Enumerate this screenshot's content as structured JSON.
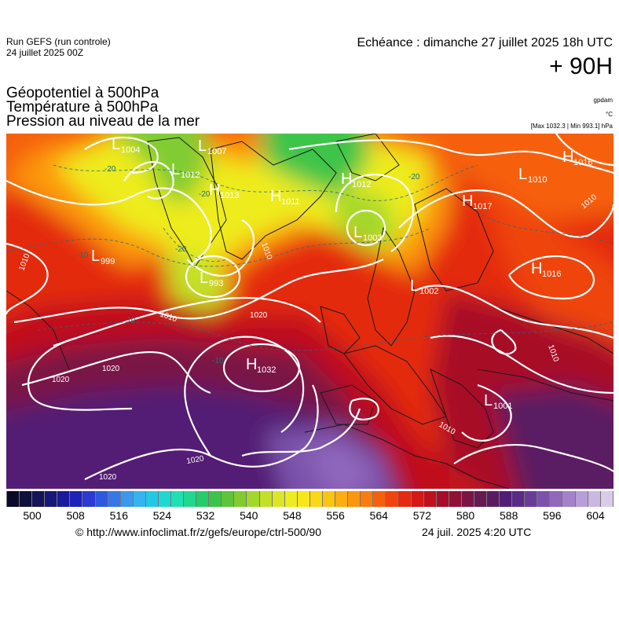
{
  "header": {
    "run_line1": "Run GEFS (run controle)",
    "run_line2": "24 juillet 2025 00Z",
    "echeance": "Echéance : dimanche 27 juillet 2025 18h UTC",
    "hour": "+ 90H",
    "title1": "Géopotentiel à 500hPa",
    "title2": "Température à 500hPa",
    "title3": "Pression au niveau de la mer",
    "unit_gpdam": "gpdam",
    "unit_c": "°C",
    "unit_hpa": "[Max 1032.3 | Min 993.1] hPa"
  },
  "map": {
    "pressure_centers": [
      {
        "type": "L",
        "value": "1004"
      },
      {
        "type": "L",
        "value": "1007"
      },
      {
        "type": "L",
        "value": "1012"
      },
      {
        "type": "H",
        "value": "1013"
      },
      {
        "type": "H",
        "value": "1011"
      },
      {
        "type": "H",
        "value": "1012"
      },
      {
        "type": "L",
        "value": "1003"
      },
      {
        "type": "L",
        "value": "999"
      },
      {
        "type": "L",
        "value": "993"
      },
      {
        "type": "H",
        "value": "1032"
      },
      {
        "type": "H",
        "value": "1016"
      },
      {
        "type": "L",
        "value": "1010"
      },
      {
        "type": "H",
        "value": "1017"
      },
      {
        "type": "H",
        "value": "1016"
      },
      {
        "type": "L",
        "value": "1002"
      },
      {
        "type": "L",
        "value": "1001"
      }
    ],
    "isobar_labels": [
      "1010",
      "1010",
      "1020",
      "1020",
      "1020",
      "1020",
      "1010",
      "1010",
      "1010",
      "1010",
      "1020"
    ],
    "temp_labels": [
      "-20",
      "-20",
      "-20",
      "-10",
      "-10",
      "-20",
      "-10"
    ]
  },
  "scale": {
    "colors": [
      "#0a0a28",
      "#10103c",
      "#141458",
      "#18187a",
      "#1a1a9a",
      "#1e22b8",
      "#2a3ad2",
      "#2f58e0",
      "#3478ea",
      "#3a98ee",
      "#35b4ee",
      "#22c8e6",
      "#1ed8d2",
      "#1ee0b4",
      "#22d890",
      "#26cc6a",
      "#3cc448",
      "#5ec43a",
      "#80cc30",
      "#a2d82c",
      "#c2e028",
      "#dce622",
      "#eeec1e",
      "#f8e61a",
      "#fad816",
      "#fcc412",
      "#fcae10",
      "#fc960e",
      "#fa7c0c",
      "#f6600c",
      "#ef440e",
      "#e42a10",
      "#d41814",
      "#c0101c",
      "#a80c28",
      "#901036",
      "#7a1444",
      "#681852",
      "#5a1a62",
      "#521e74",
      "#5a2a88",
      "#6a3c9a",
      "#7c52ac",
      "#9068bc",
      "#a482ca",
      "#b89ed8",
      "#cab8e2",
      "#d8ccea"
    ],
    "ticks": [
      "500",
      "508",
      "516",
      "524",
      "532",
      "540",
      "548",
      "556",
      "564",
      "572",
      "580",
      "588",
      "596",
      "604"
    ]
  },
  "footer": {
    "credit": "© http://www.infoclimat.fr/z/gefs/europe/ctrl-500/90",
    "stamp": "24 juil. 2025  4:20 UTC"
  }
}
